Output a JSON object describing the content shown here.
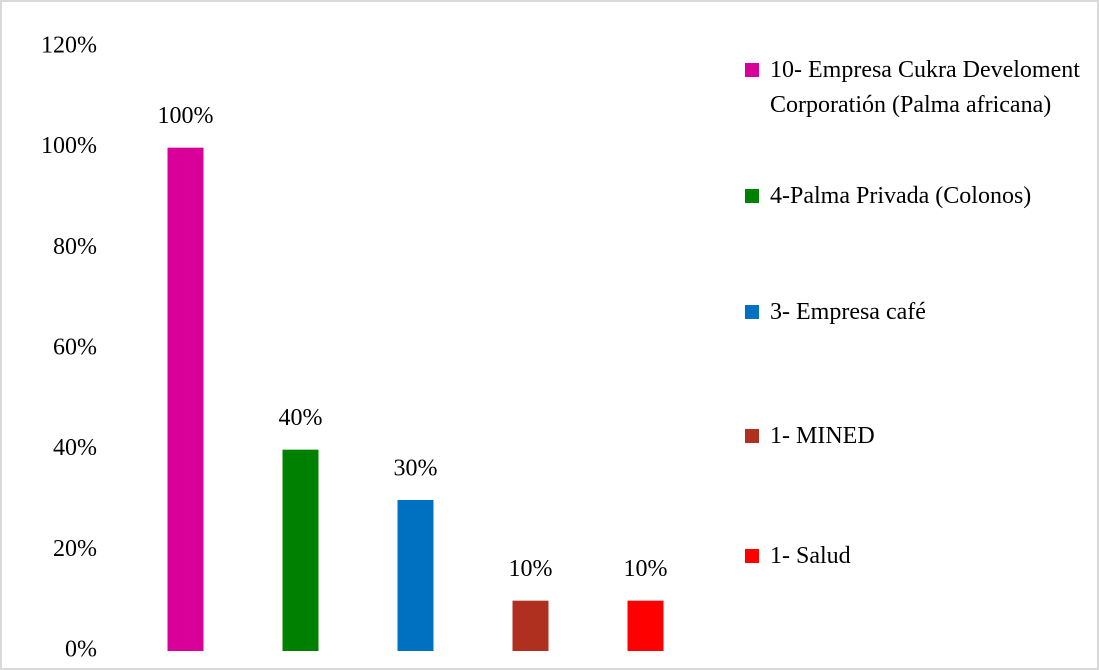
{
  "chart_data": {
    "type": "bar",
    "categories": [
      null
    ],
    "series": [
      {
        "name": "10- Empresa Cukra Develoment Corporatión (Palma africana)",
        "color": "#d9009a",
        "values": [
          100
        ],
        "value_labels": [
          "100%"
        ]
      },
      {
        "name": "4-Palma Privada (Colonos)",
        "color": "#008000",
        "values": [
          40
        ],
        "value_labels": [
          "40%"
        ]
      },
      {
        "name": "3- Empresa café",
        "color": "#0070c0",
        "values": [
          30
        ],
        "value_labels": [
          "30%"
        ]
      },
      {
        "name": "1- MINED",
        "color": "#b03020",
        "values": [
          10
        ],
        "value_labels": [
          "10%"
        ]
      },
      {
        "name": "1- Salud",
        "color": "#ff0000",
        "values": [
          10
        ],
        "value_labels": [
          "10%"
        ]
      }
    ],
    "ylim": [
      0,
      120
    ],
    "yticks": [
      {
        "value": 0,
        "label": "0%"
      },
      {
        "value": 20,
        "label": "20%"
      },
      {
        "value": 40,
        "label": "40%"
      },
      {
        "value": 60,
        "label": "60%"
      },
      {
        "value": 80,
        "label": "80%"
      },
      {
        "value": 100,
        "label": "100%"
      },
      {
        "value": 120,
        "label": "120%"
      }
    ],
    "grid": false,
    "legend": "right"
  }
}
